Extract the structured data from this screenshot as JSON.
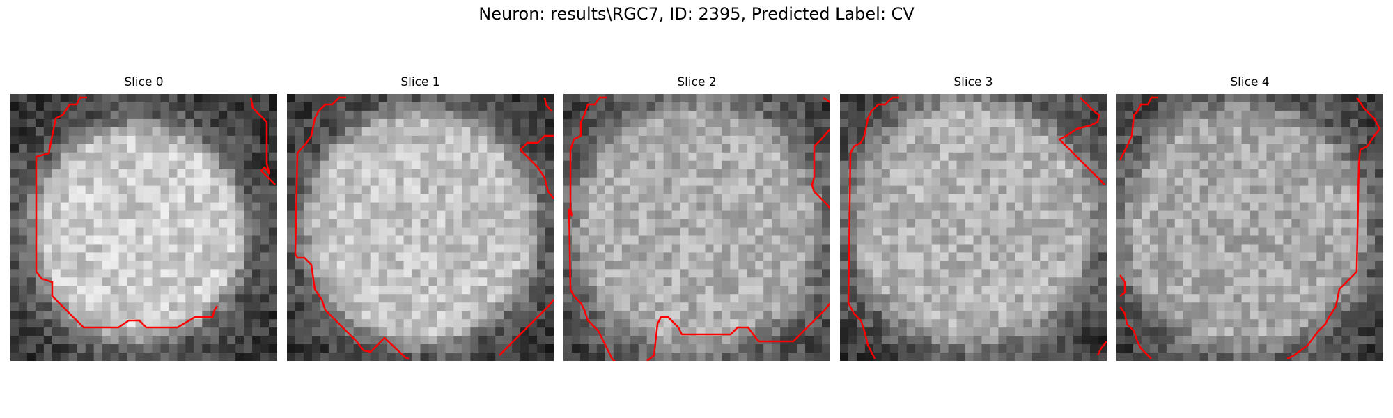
{
  "figure": {
    "title": "Neuron: results\\RGC7, ID: 2395, Predicted Label: CV"
  },
  "colors": {
    "contour": "#ff0000",
    "background": "#ffffff"
  },
  "panels": [
    {
      "title": "Slice 0",
      "image": "grayscale-microscopy-crop",
      "overlay": "red-contour"
    },
    {
      "title": "Slice 1",
      "image": "grayscale-microscopy-crop",
      "overlay": "red-contour"
    },
    {
      "title": "Slice 2",
      "image": "grayscale-microscopy-crop",
      "overlay": "red-contour"
    },
    {
      "title": "Slice 3",
      "image": "grayscale-microscopy-crop",
      "overlay": "red-contour"
    },
    {
      "title": "Slice 4",
      "image": "grayscale-microscopy-crop",
      "overlay": "red-contour"
    }
  ]
}
